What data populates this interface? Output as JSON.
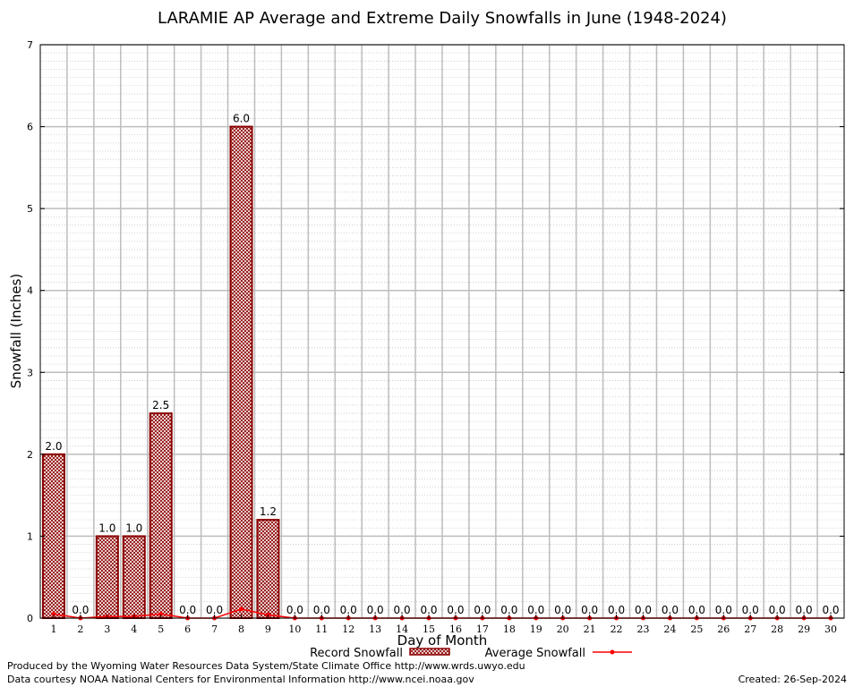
{
  "chart_data": {
    "type": "bar",
    "title": "LARAMIE AP Average and Extreme Daily Snowfalls in June (1948-2024)",
    "xlabel": "Day of Month",
    "ylabel": "Snowfall (Inches)",
    "ylim": [
      0,
      7
    ],
    "yticks": [
      "0",
      "1",
      "2",
      "3",
      "4",
      "5",
      "6",
      "7"
    ],
    "grid": true,
    "legend_placement": "bottom-center",
    "categories": [
      "1",
      "2",
      "3",
      "4",
      "5",
      "6",
      "7",
      "8",
      "9",
      "10",
      "11",
      "12",
      "13",
      "14",
      "15",
      "16",
      "17",
      "18",
      "19",
      "20",
      "21",
      "22",
      "23",
      "24",
      "25",
      "26",
      "27",
      "28",
      "29",
      "30"
    ],
    "series": [
      {
        "name": "Record Snowfall",
        "kind": "bar",
        "color": "#8b0000",
        "values": [
          2.0,
          0,
          1.0,
          1.0,
          2.5,
          0,
          0,
          6.0,
          1.2,
          0,
          0,
          0,
          0,
          0,
          0,
          0,
          0,
          0,
          0,
          0,
          0,
          0,
          0,
          0,
          0,
          0,
          0,
          0,
          0,
          0
        ],
        "labels": [
          "2.0",
          "0.0",
          "1.0",
          "1.0",
          "2.5",
          "0.0",
          "0.0",
          "6.0",
          "1.2",
          "0.0",
          "0.0",
          "0.0",
          "0.0",
          "0.0",
          "0.0",
          "0.0",
          "0.0",
          "0.0",
          "0.0",
          "0.0",
          "0.0",
          "0.0",
          "0.0",
          "0.0",
          "0.0",
          "0.0",
          "0.0",
          "0.0",
          "0.0",
          "0.0"
        ]
      },
      {
        "name": "Average Snowfall",
        "kind": "line",
        "color": "#ff0000",
        "values": [
          0.05,
          0,
          0.02,
          0.02,
          0.05,
          0,
          0,
          0.11,
          0.04,
          0,
          0,
          0,
          0,
          0,
          0,
          0,
          0,
          0,
          0,
          0,
          0,
          0,
          0,
          0,
          0,
          0,
          0,
          0,
          0,
          0
        ]
      }
    ]
  },
  "footer": {
    "produced_by": "Produced by the Wyoming Water Resources Data System/State Climate Office http://www.wrds.uwyo.edu",
    "courtesy": "Data courtesy NOAA National Centers for Environmental Information http://www.ncei.noaa.gov",
    "created": "Created: 26-Sep-2024"
  }
}
